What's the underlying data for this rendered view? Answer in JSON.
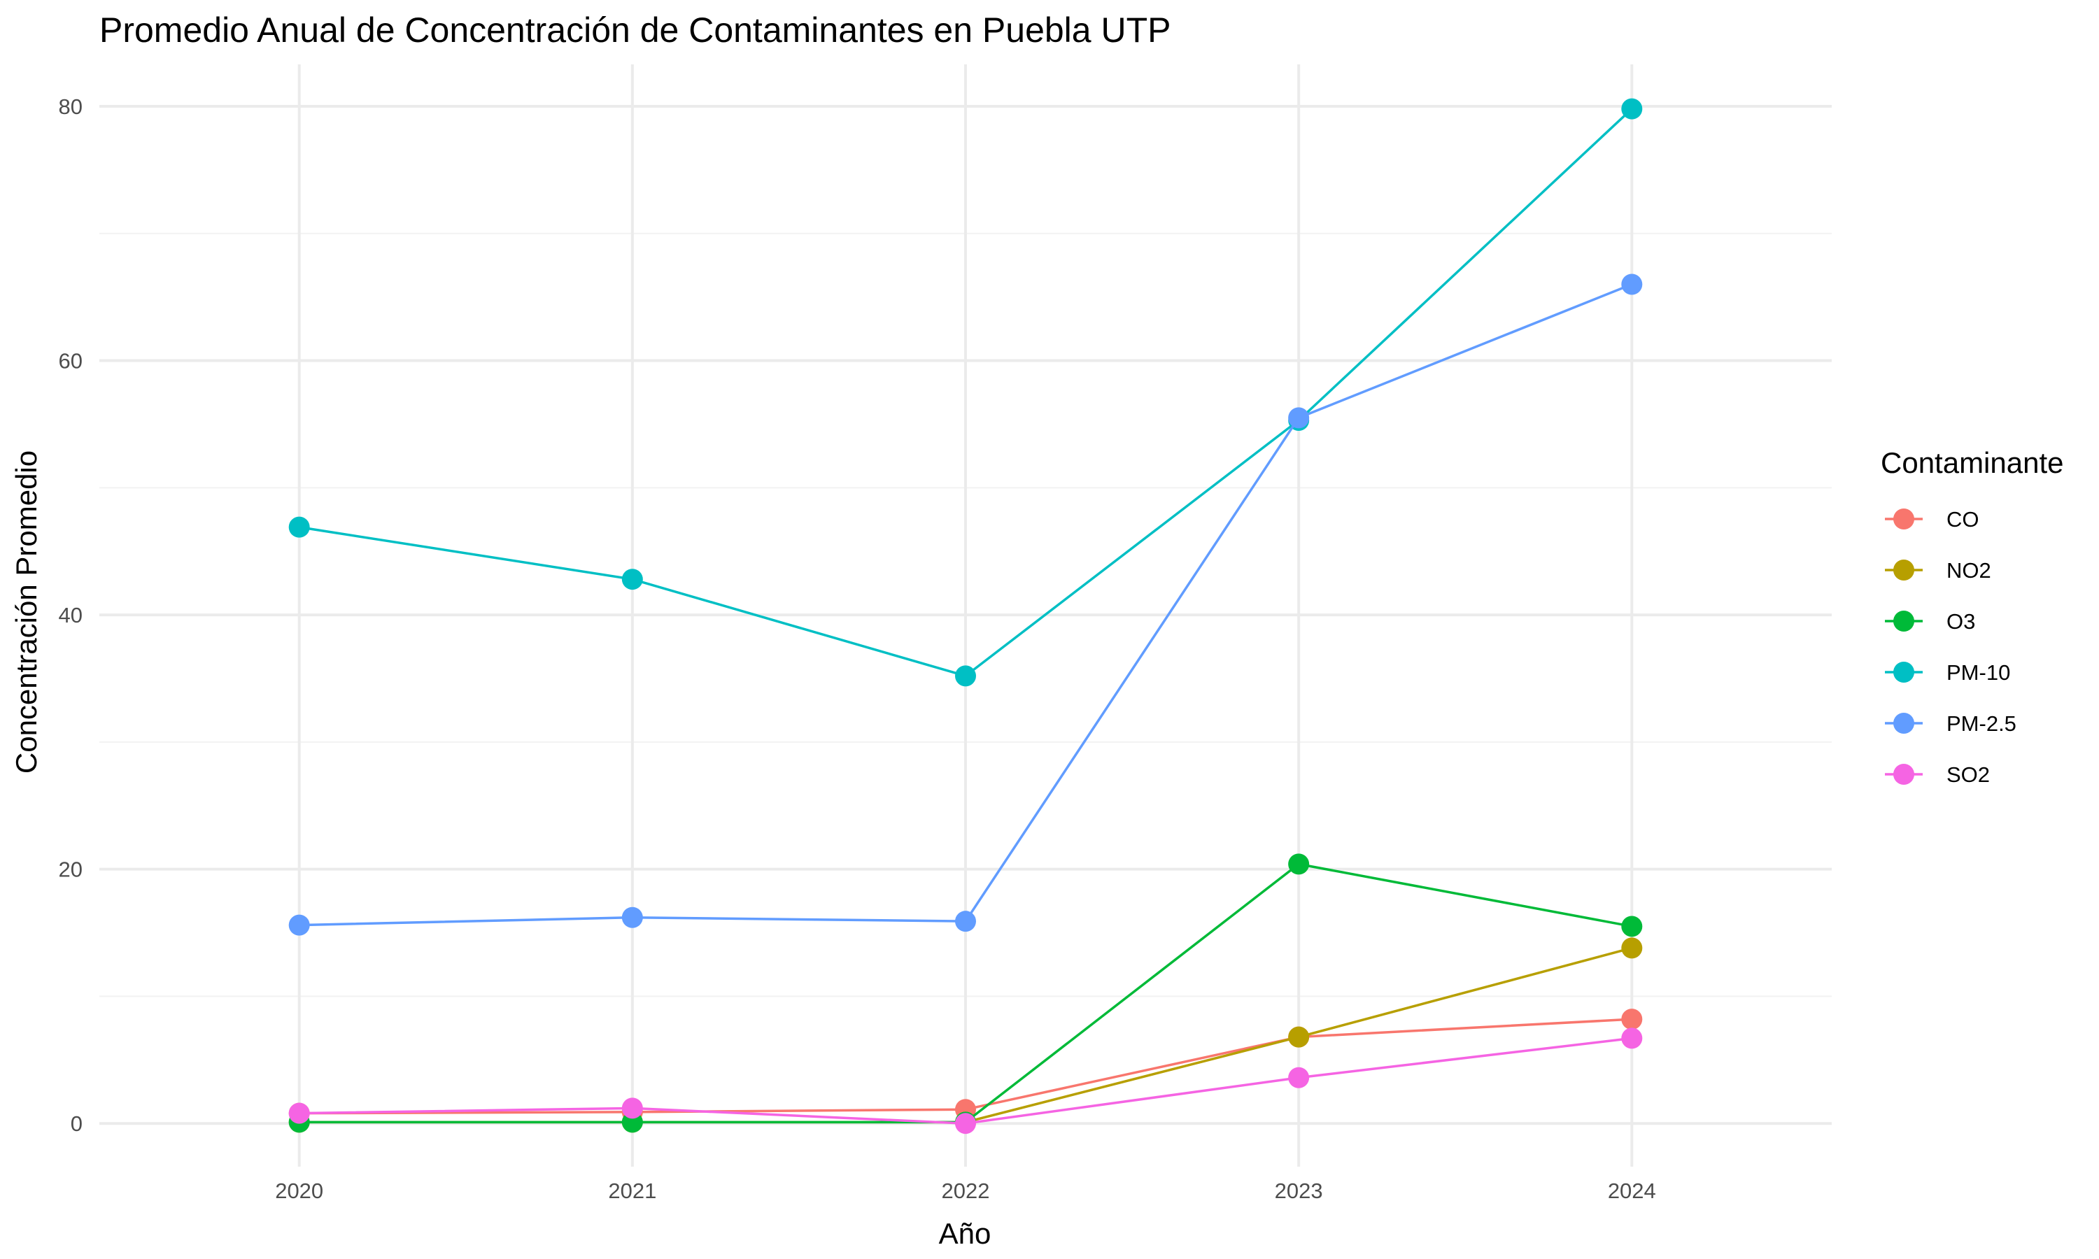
{
  "chart_data": {
    "type": "line",
    "title": "Promedio Anual de Concentración de Contaminantes en Puebla UTP",
    "xlabel": "Año",
    "ylabel": "Concentración Promedio",
    "x": [
      2020,
      2021,
      2022,
      2023,
      2024
    ],
    "x_tick_labels": [
      "2020",
      "2021",
      "2022",
      "2023",
      "2024"
    ],
    "y_ticks": [
      0,
      20,
      40,
      60,
      80
    ],
    "y_tick_labels": [
      "0",
      "20",
      "40",
      "60",
      "80"
    ],
    "xlim": [
      2019.4,
      2024.6
    ],
    "ylim": [
      -3.4,
      83.3
    ],
    "grid": true,
    "legend": {
      "title": "Contaminante",
      "position": "right"
    },
    "series": [
      {
        "name": "CO",
        "color": "#F8766D",
        "values": [
          0.8,
          0.9,
          1.1,
          6.8,
          8.2
        ]
      },
      {
        "name": "NO2",
        "color": "#B79F00",
        "values": [
          0.1,
          0.1,
          0.1,
          6.8,
          13.8
        ]
      },
      {
        "name": "O3",
        "color": "#00BA38",
        "values": [
          0.1,
          0.1,
          0.1,
          20.4,
          15.5
        ]
      },
      {
        "name": "PM-10",
        "color": "#00BFC4",
        "values": [
          46.9,
          42.8,
          35.2,
          55.3,
          79.8
        ]
      },
      {
        "name": "PM-2.5",
        "color": "#619CFF",
        "values": [
          15.6,
          16.2,
          15.9,
          55.5,
          66.0
        ]
      },
      {
        "name": "SO2",
        "color": "#F564E3",
        "values": [
          0.8,
          1.2,
          0.0,
          3.6,
          6.7
        ]
      }
    ]
  }
}
